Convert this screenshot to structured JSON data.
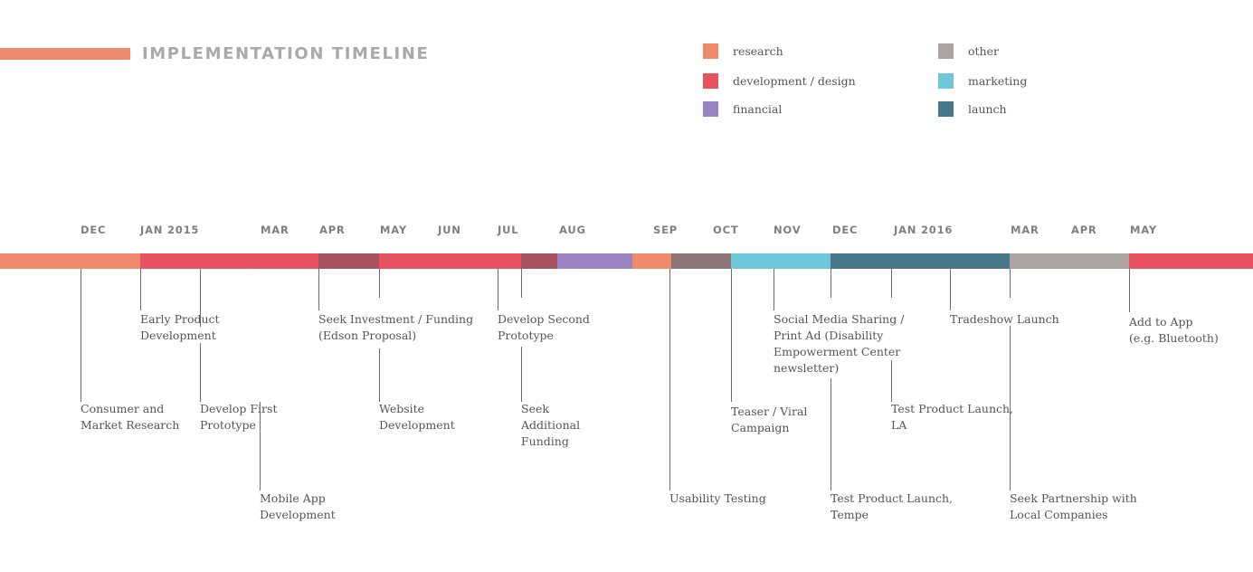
{
  "title": "IMPLEMENTATION TIMELINE",
  "legend": [
    {
      "label": "research",
      "color": "#ef8a6c"
    },
    {
      "label": "development / design",
      "color": "#e8525f"
    },
    {
      "label": "financial",
      "color": "#9b82c3"
    },
    {
      "label": "other",
      "color": "#ada3a3"
    },
    {
      "label": "marketing",
      "color": "#6fc7da"
    },
    {
      "label": "launch",
      "color": "#46778a"
    }
  ],
  "colors": {
    "research": "#ef8a6c",
    "development": "#e8525f",
    "dev_dark": "#a7535f",
    "financial": "#9b82c3",
    "other": "#ada3a3",
    "other_dark": "#8c7474",
    "marketing": "#6fc7da",
    "launch": "#46778a"
  },
  "months": [
    "DEC",
    "JAN 2015",
    "MAR",
    "APR",
    "MAY",
    "JUN",
    "JUL",
    "AUG",
    "SEP",
    "OCT",
    "NOV",
    "DEC",
    "JAN 2016",
    "MAR",
    "APR",
    "MAY"
  ],
  "segments": [
    {
      "category": "research",
      "start_month": "DEC"
    },
    {
      "category": "development",
      "start_month": "JAN 2015"
    },
    {
      "category": "dev_dark",
      "start_month": "APR"
    },
    {
      "category": "development",
      "start_month": "MAY"
    },
    {
      "category": "dev_dark",
      "start_month": "JUL"
    },
    {
      "category": "financial",
      "start_month": "AUG"
    },
    {
      "category": "research",
      "start_month": "SEP"
    },
    {
      "category": "other_dark",
      "start_month": "OCT"
    },
    {
      "category": "marketing",
      "start_month": "NOV"
    },
    {
      "category": "launch",
      "start_month": "DEC"
    },
    {
      "category": "other",
      "start_month": "MAR"
    },
    {
      "category": "development",
      "start_month": "MAY"
    }
  ],
  "events": [
    {
      "lines": [
        "Consumer and",
        "Market Research"
      ]
    },
    {
      "lines": [
        "Early Product",
        "Development"
      ]
    },
    {
      "lines": [
        "Develop First",
        "Prototype"
      ]
    },
    {
      "lines": [
        "Mobile App",
        "Development"
      ]
    },
    {
      "lines": [
        "Seek Investment / Funding",
        "(Edson Proposal)"
      ]
    },
    {
      "lines": [
        "Website",
        "Development"
      ]
    },
    {
      "lines": [
        "Develop Second",
        "Prototype"
      ]
    },
    {
      "lines": [
        "Seek",
        "Additional",
        "Funding"
      ]
    },
    {
      "lines": [
        "Usability Testing"
      ]
    },
    {
      "lines": [
        "Teaser / Viral",
        "Campaign"
      ]
    },
    {
      "lines": [
        "Social Media Sharing /",
        "Print Ad (Disability",
        "Empowerment Center",
        "newsletter)"
      ]
    },
    {
      "lines": [
        "Test Product Launch,",
        "Tempe"
      ]
    },
    {
      "lines": [
        "Test Product Launch,",
        "LA"
      ]
    },
    {
      "lines": [
        "Tradeshow Launch"
      ]
    },
    {
      "lines": [
        "Seek Partnership with",
        "Local Companies"
      ]
    },
    {
      "lines": [
        "Add to App",
        "(e.g. Bluetooth)"
      ]
    }
  ]
}
